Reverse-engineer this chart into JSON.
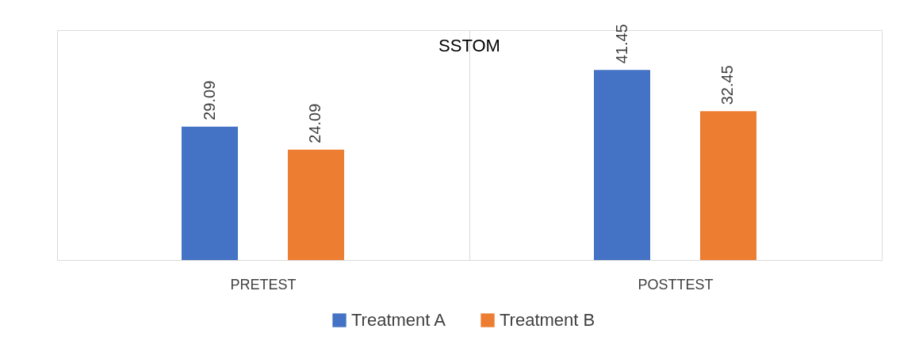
{
  "chart_data": {
    "type": "bar",
    "title": "SSTOM",
    "categories": [
      "PRETEST",
      "POSTTEST"
    ],
    "series": [
      {
        "name": "Treatment A",
        "color": "#4472c4",
        "values": [
          29.09,
          41.45
        ]
      },
      {
        "name": "Treatment B",
        "color": "#ed7d31",
        "values": [
          24.09,
          32.45
        ]
      }
    ],
    "data_labels": true,
    "grid": "x",
    "legend": "bottom"
  }
}
